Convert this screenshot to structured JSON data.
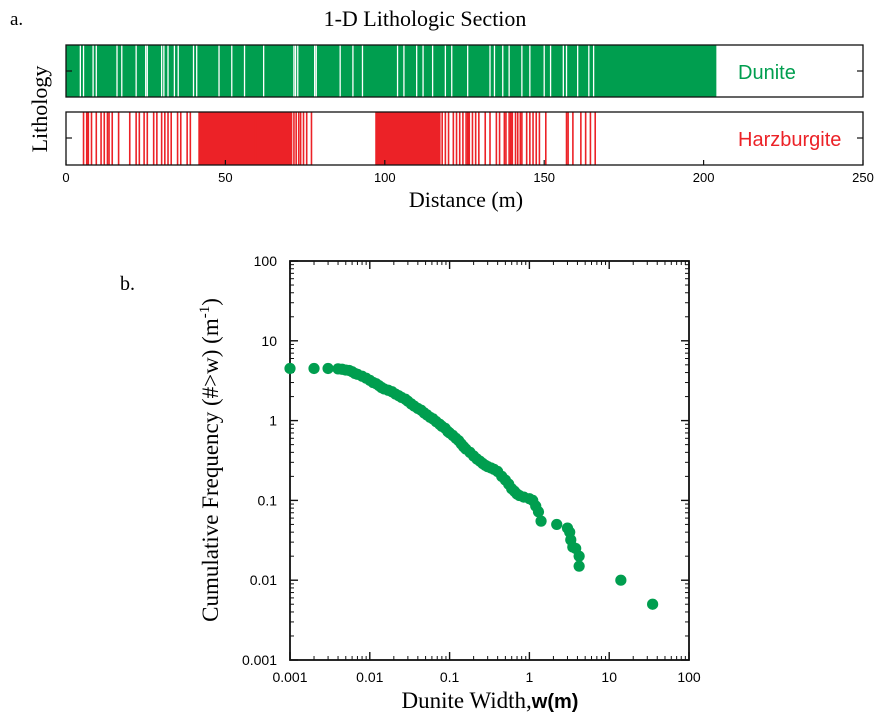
{
  "chart_data": [
    {
      "type": "bar",
      "panel_label": "a.",
      "title": "1-D Lithologic Section",
      "xlabel": "Distance (m)",
      "ylabel": "Lithology",
      "xlim": [
        0,
        250
      ],
      "xticks": [
        "0",
        "50",
        "100",
        "150",
        "200",
        "250"
      ],
      "colors": {
        "dunite": "#009e4f",
        "harzburgite": "#ec2227"
      },
      "series": [
        {
          "name": "Dunite",
          "color": "#009e4f",
          "extent": [
            0,
            204
          ],
          "gaps": [
            4.5,
            5.5,
            8.5,
            9.5,
            16,
            17.5,
            22,
            25,
            25.5,
            30,
            30.7,
            32,
            34,
            35.2,
            40,
            41,
            48,
            52,
            56,
            62,
            71.5,
            72,
            72.7,
            78,
            78.5,
            86,
            90,
            93,
            104,
            106,
            110,
            112,
            115,
            119,
            121,
            126,
            133,
            134.4,
            137,
            139,
            143,
            145.5,
            150,
            152,
            156,
            157,
            160.5,
            164,
            165.5
          ]
        },
        {
          "name": "Harzburgite",
          "color": "#ec2227",
          "blocks": [
            [
              41.5,
              71
            ],
            [
              97,
              117.5
            ]
          ],
          "lines": [
            5.5,
            6.5,
            7,
            8,
            9.5,
            11,
            12,
            13,
            13.5,
            14.5,
            16.5,
            20,
            22,
            23,
            24.5,
            25.5,
            27.5,
            28.5,
            30,
            31,
            32,
            33,
            35,
            36,
            38,
            39,
            59.5,
            71.5,
            72.2,
            73,
            73.6,
            74.5,
            75.5,
            77,
            118,
            119,
            120,
            121.5,
            122.5,
            123.5,
            124.5,
            125.5,
            126,
            126.5,
            127.5,
            128.5,
            129.5,
            131.5,
            133,
            135,
            136,
            137.5,
            138,
            139,
            139.5,
            140,
            141,
            141.7,
            142.5,
            143,
            144.5,
            145.5,
            146.5,
            147.5,
            148.5,
            150.5,
            157,
            157.5,
            159,
            161.5,
            163,
            164.5,
            166
          ]
        }
      ]
    },
    {
      "type": "scatter",
      "panel_label": "b.",
      "xlabel": "Dunite Width,",
      "xlabel_var": "w(m)",
      "ylabel": "Cumulative Frequency (#>w) (m",
      "ylabel_sup": "-1",
      "ylabel_close": ")",
      "xscale": "log",
      "yscale": "log",
      "xlim": [
        0.001,
        100
      ],
      "ylim": [
        0.001,
        100
      ],
      "xticks": [
        "0.001",
        "0.01",
        "0.1",
        "1",
        "10",
        "100"
      ],
      "yticks": [
        "0.001",
        "0.01",
        "0.1",
        "1",
        "10",
        "100"
      ],
      "grid": false,
      "color": "#009e4f",
      "points": [
        [
          0.001,
          4.5
        ],
        [
          0.002,
          4.5
        ],
        [
          0.003,
          4.5
        ],
        [
          0.004,
          4.45
        ],
        [
          0.0045,
          4.4
        ],
        [
          0.005,
          4.3
        ],
        [
          0.0055,
          4.25
        ],
        [
          0.006,
          4.1
        ],
        [
          0.0065,
          3.9
        ],
        [
          0.007,
          3.8
        ],
        [
          0.008,
          3.6
        ],
        [
          0.009,
          3.4
        ],
        [
          0.01,
          3.2
        ],
        [
          0.011,
          3.0
        ],
        [
          0.012,
          2.9
        ],
        [
          0.013,
          2.75
        ],
        [
          0.014,
          2.6
        ],
        [
          0.015,
          2.5
        ],
        [
          0.017,
          2.4
        ],
        [
          0.019,
          2.3
        ],
        [
          0.021,
          2.15
        ],
        [
          0.023,
          2.05
        ],
        [
          0.025,
          1.95
        ],
        [
          0.028,
          1.85
        ],
        [
          0.03,
          1.75
        ],
        [
          0.033,
          1.62
        ],
        [
          0.036,
          1.52
        ],
        [
          0.04,
          1.42
        ],
        [
          0.044,
          1.35
        ],
        [
          0.048,
          1.25
        ],
        [
          0.052,
          1.18
        ],
        [
          0.057,
          1.1
        ],
        [
          0.062,
          1.05
        ],
        [
          0.068,
          0.97
        ],
        [
          0.075,
          0.9
        ],
        [
          0.08,
          0.85
        ],
        [
          0.088,
          0.8
        ],
        [
          0.095,
          0.73
        ],
        [
          0.1,
          0.7
        ],
        [
          0.11,
          0.65
        ],
        [
          0.12,
          0.6
        ],
        [
          0.13,
          0.56
        ],
        [
          0.14,
          0.51
        ],
        [
          0.15,
          0.47
        ],
        [
          0.16,
          0.44
        ],
        [
          0.18,
          0.4
        ],
        [
          0.2,
          0.36
        ],
        [
          0.22,
          0.33
        ],
        [
          0.24,
          0.31
        ],
        [
          0.26,
          0.29
        ],
        [
          0.28,
          0.275
        ],
        [
          0.3,
          0.265
        ],
        [
          0.33,
          0.255
        ],
        [
          0.36,
          0.245
        ],
        [
          0.4,
          0.23
        ],
        [
          0.45,
          0.2
        ],
        [
          0.5,
          0.18
        ],
        [
          0.55,
          0.16
        ],
        [
          0.6,
          0.14
        ],
        [
          0.65,
          0.13
        ],
        [
          0.7,
          0.12
        ],
        [
          0.75,
          0.115
        ],
        [
          0.85,
          0.11
        ],
        [
          1.0,
          0.105
        ],
        [
          1.1,
          0.1
        ],
        [
          1.2,
          0.085
        ],
        [
          1.3,
          0.072
        ],
        [
          1.4,
          0.055
        ],
        [
          2.2,
          0.05
        ],
        [
          3.0,
          0.045
        ],
        [
          3.2,
          0.04
        ],
        [
          3.3,
          0.032
        ],
        [
          3.5,
          0.026
        ],
        [
          3.8,
          0.025
        ],
        [
          4.2,
          0.02
        ],
        [
          4.2,
          0.015
        ],
        [
          14,
          0.01
        ],
        [
          35,
          0.005
        ]
      ]
    }
  ]
}
